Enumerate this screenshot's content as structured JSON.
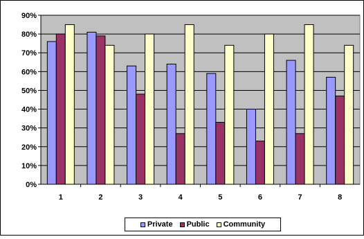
{
  "colors": {
    "plot_background": "#C0C0C0",
    "Private": "#9999FF",
    "Public": "#993366",
    "Community": "#FFFFCC"
  },
  "chart_data": {
    "type": "bar",
    "title": "",
    "xlabel": "",
    "ylabel": "",
    "categories": [
      "1",
      "2",
      "3",
      "4",
      "5",
      "6",
      "7",
      "8"
    ],
    "ylim": [
      0,
      90
    ],
    "ytick_labels": [
      "0%",
      "10%",
      "20%",
      "30%",
      "40%",
      "50%",
      "60%",
      "70%",
      "80%",
      "90%"
    ],
    "grid": true,
    "legend_position": "bottom",
    "series": [
      {
        "name": "Private",
        "values": [
          76,
          81,
          63,
          64,
          59,
          40,
          66,
          57
        ]
      },
      {
        "name": "Public",
        "values": [
          80,
          79,
          48,
          27,
          33,
          23,
          27,
          47
        ]
      },
      {
        "name": "Community",
        "values": [
          85,
          74,
          80,
          85,
          74,
          80,
          85,
          74
        ]
      }
    ]
  }
}
